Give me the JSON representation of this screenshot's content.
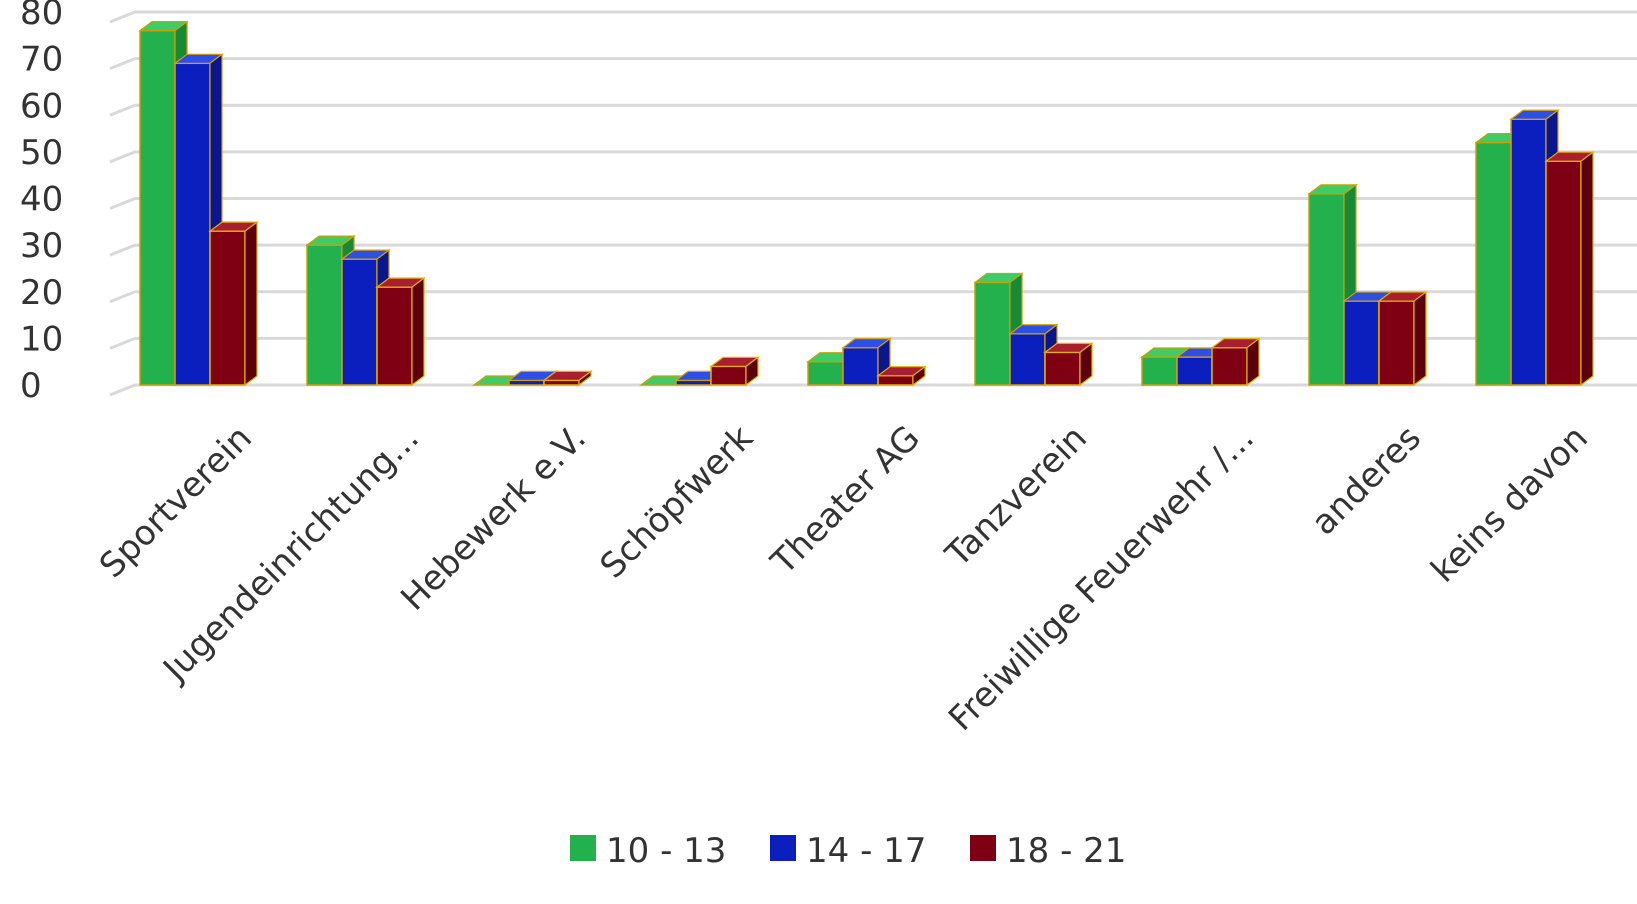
{
  "chart_data": {
    "type": "bar",
    "categories": [
      "Sportverein",
      "Jugendeinrichtung...",
      "Hebewerk e.V.",
      "Schöpfwerk",
      "Theater AG",
      "Tanzverein",
      "Freiwillige Feuerwehr /...",
      "anderes",
      "keins davon"
    ],
    "series": [
      {
        "name": "10 - 13",
        "values": [
          76,
          30,
          0,
          0,
          5,
          22,
          6,
          41,
          52
        ]
      },
      {
        "name": "14 - 17",
        "values": [
          69,
          27,
          1,
          1,
          8,
          11,
          6,
          18,
          57
        ]
      },
      {
        "name": "18 - 21",
        "values": [
          33,
          21,
          1,
          4,
          2,
          7,
          8,
          18,
          48
        ]
      }
    ],
    "title": "",
    "xlabel": "",
    "ylabel": "",
    "ylim": [
      0,
      80
    ],
    "yticks": [
      "0",
      "10",
      "20",
      "30",
      "40",
      "50",
      "60",
      "70",
      "80"
    ],
    "grid": true,
    "legend_position": "bottom",
    "style": "3d-clustered-column",
    "colors": {
      "series": [
        "#22b14c",
        "#0b1fbf",
        "#800013"
      ],
      "series_top": [
        "#3fcc67",
        "#2e4ee8",
        "#a8202f"
      ],
      "series_side": [
        "#178a38",
        "#0a168f",
        "#5c000e"
      ],
      "series_outline": [
        "#c8a000",
        "#d4a000",
        "#e0b000"
      ],
      "grid": "#d9d9d9",
      "text": "#333333"
    }
  }
}
